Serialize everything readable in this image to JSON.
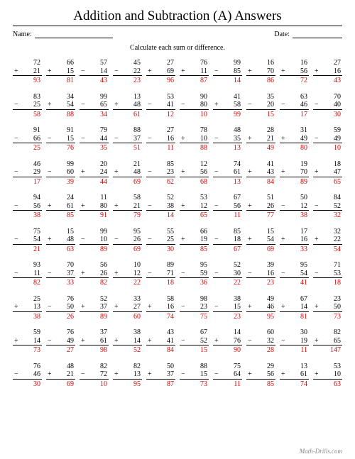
{
  "title": "Addition and Subtraction (A) Answers",
  "meta": {
    "name_label": "Name:",
    "date_label": "Date:",
    "name_line_width": 110,
    "date_line_width": 70
  },
  "instruction": "Calculate each sum or difference.",
  "footer": "Math-Drills.com",
  "colors": {
    "answer": "#d40000",
    "text": "#000000",
    "background": "#ffffff",
    "footer": "#888888"
  },
  "problems": [
    [
      {
        "t": 72,
        "o": "+",
        "b": 21,
        "a": 93
      },
      {
        "t": 66,
        "o": "+",
        "b": 15,
        "a": 81
      },
      {
        "t": 57,
        "o": "−",
        "b": 14,
        "a": 43
      },
      {
        "t": 45,
        "o": "−",
        "b": 22,
        "a": 23
      },
      {
        "t": 27,
        "o": "+",
        "b": 69,
        "a": 96
      },
      {
        "t": 76,
        "o": "+",
        "b": 11,
        "a": 87
      },
      {
        "t": 99,
        "o": "−",
        "b": 85,
        "a": 14
      },
      {
        "t": 16,
        "o": "+",
        "b": 70,
        "a": 86
      },
      {
        "t": 16,
        "o": "+",
        "b": 56,
        "a": 72
      },
      {
        "t": 27,
        "o": "+",
        "b": 16,
        "a": 43
      }
    ],
    [
      {
        "t": 83,
        "o": "−",
        "b": 25,
        "a": 58
      },
      {
        "t": 34,
        "o": "+",
        "b": 54,
        "a": 88
      },
      {
        "t": 99,
        "o": "−",
        "b": 65,
        "a": 34
      },
      {
        "t": 13,
        "o": "+",
        "b": 48,
        "a": 61
      },
      {
        "t": 53,
        "o": "−",
        "b": 41,
        "a": 12
      },
      {
        "t": 90,
        "o": "−",
        "b": 80,
        "a": 10
      },
      {
        "t": 41,
        "o": "+",
        "b": 58,
        "a": 99
      },
      {
        "t": 35,
        "o": "−",
        "b": 20,
        "a": 15
      },
      {
        "t": 63,
        "o": "−",
        "b": 46,
        "a": 17
      },
      {
        "t": 70,
        "o": "−",
        "b": 40,
        "a": 30
      }
    ],
    [
      {
        "t": 91,
        "o": "−",
        "b": 66,
        "a": 25
      },
      {
        "t": 91,
        "o": "−",
        "b": 15,
        "a": 76
      },
      {
        "t": 79,
        "o": "−",
        "b": 44,
        "a": 35
      },
      {
        "t": 88,
        "o": "−",
        "b": 37,
        "a": 51
      },
      {
        "t": 27,
        "o": "−",
        "b": 16,
        "a": 11
      },
      {
        "t": 78,
        "o": "+",
        "b": 10,
        "a": 88
      },
      {
        "t": 48,
        "o": "−",
        "b": 35,
        "a": 13
      },
      {
        "t": 28,
        "o": "+",
        "b": 21,
        "a": 49
      },
      {
        "t": 31,
        "o": "+",
        "b": 49,
        "a": 80
      },
      {
        "t": 59,
        "o": "−",
        "b": 49,
        "a": 10
      }
    ],
    [
      {
        "t": 46,
        "o": "−",
        "b": 29,
        "a": 17
      },
      {
        "t": 99,
        "o": "−",
        "b": 60,
        "a": 39
      },
      {
        "t": 20,
        "o": "+",
        "b": 24,
        "a": 44
      },
      {
        "t": 21,
        "o": "+",
        "b": 48,
        "a": 69
      },
      {
        "t": 85,
        "o": "−",
        "b": 23,
        "a": 62
      },
      {
        "t": 12,
        "o": "+",
        "b": 56,
        "a": 68
      },
      {
        "t": 74,
        "o": "−",
        "b": 61,
        "a": 13
      },
      {
        "t": 41,
        "o": "+",
        "b": 43,
        "a": 84
      },
      {
        "t": 19,
        "o": "+",
        "b": 70,
        "a": 89
      },
      {
        "t": 18,
        "o": "+",
        "b": 47,
        "a": 65
      }
    ],
    [
      {
        "t": 94,
        "o": "−",
        "b": 56,
        "a": 38
      },
      {
        "t": 24,
        "o": "+",
        "b": 61,
        "a": 85
      },
      {
        "t": 11,
        "o": "+",
        "b": 80,
        "a": 91
      },
      {
        "t": 58,
        "o": "+",
        "b": 21,
        "a": 79
      },
      {
        "t": 52,
        "o": "−",
        "b": 38,
        "a": 14
      },
      {
        "t": 53,
        "o": "+",
        "b": 12,
        "a": 65
      },
      {
        "t": 67,
        "o": "−",
        "b": 56,
        "a": 11
      },
      {
        "t": 51,
        "o": "+",
        "b": 26,
        "a": 77
      },
      {
        "t": 50,
        "o": "−",
        "b": 12,
        "a": 38
      },
      {
        "t": 84,
        "o": "−",
        "b": 52,
        "a": 32
      }
    ],
    [
      {
        "t": 75,
        "o": "−",
        "b": 54,
        "a": 21
      },
      {
        "t": 15,
        "o": "+",
        "b": 48,
        "a": 63
      },
      {
        "t": 99,
        "o": "−",
        "b": 10,
        "a": 89
      },
      {
        "t": 95,
        "o": "−",
        "b": 26,
        "a": 69
      },
      {
        "t": 55,
        "o": "−",
        "b": 25,
        "a": 30
      },
      {
        "t": 66,
        "o": "+",
        "b": 19,
        "a": 85
      },
      {
        "t": 85,
        "o": "−",
        "b": 18,
        "a": 67
      },
      {
        "t": 15,
        "o": "+",
        "b": 54,
        "a": 69
      },
      {
        "t": 17,
        "o": "+",
        "b": 16,
        "a": 33
      },
      {
        "t": 32,
        "o": "+",
        "b": 22,
        "a": 54
      }
    ],
    [
      {
        "t": 93,
        "o": "−",
        "b": 11,
        "a": 82
      },
      {
        "t": 70,
        "o": "−",
        "b": 37,
        "a": 33
      },
      {
        "t": 56,
        "o": "+",
        "b": 26,
        "a": 82
      },
      {
        "t": 10,
        "o": "+",
        "b": 12,
        "a": 22
      },
      {
        "t": 89,
        "o": "−",
        "b": 71,
        "a": 18
      },
      {
        "t": 95,
        "o": "−",
        "b": 59,
        "a": 36
      },
      {
        "t": 52,
        "o": "−",
        "b": 30,
        "a": 22
      },
      {
        "t": 39,
        "o": "−",
        "b": 16,
        "a": 23
      },
      {
        "t": 95,
        "o": "−",
        "b": 54,
        "a": 41
      },
      {
        "t": 71,
        "o": "−",
        "b": 53,
        "a": 18
      }
    ],
    [
      {
        "t": 25,
        "o": "+",
        "b": 13,
        "a": 38
      },
      {
        "t": 76,
        "o": "−",
        "b": 50,
        "a": 26
      },
      {
        "t": 52,
        "o": "+",
        "b": 37,
        "a": 89
      },
      {
        "t": 33,
        "o": "+",
        "b": 27,
        "a": 60
      },
      {
        "t": 58,
        "o": "+",
        "b": 16,
        "a": 74
      },
      {
        "t": 98,
        "o": "−",
        "b": 23,
        "a": 75
      },
      {
        "t": 38,
        "o": "−",
        "b": 15,
        "a": 23
      },
      {
        "t": 49,
        "o": "+",
        "b": 46,
        "a": 95
      },
      {
        "t": 67,
        "o": "+",
        "b": 14,
        "a": 81
      },
      {
        "t": 23,
        "o": "+",
        "b": 50,
        "a": 73
      }
    ],
    [
      {
        "t": 59,
        "o": "+",
        "b": 14,
        "a": 73
      },
      {
        "t": 76,
        "o": "−",
        "b": 49,
        "a": 27
      },
      {
        "t": 37,
        "o": "+",
        "b": 61,
        "a": 98
      },
      {
        "t": 38,
        "o": "+",
        "b": 14,
        "a": 52
      },
      {
        "t": 43,
        "o": "+",
        "b": 41,
        "a": 84
      },
      {
        "t": 67,
        "o": "−",
        "b": 52,
        "a": 15
      },
      {
        "t": 14,
        "o": "+",
        "b": 76,
        "a": 90
      },
      {
        "t": 60,
        "o": "−",
        "b": 32,
        "a": 28
      },
      {
        "t": 30,
        "o": "−",
        "b": 19,
        "a": 11
      },
      {
        "t": 82,
        "o": "+",
        "b": 65,
        "a": 147
      }
    ],
    [
      {
        "t": 76,
        "o": "−",
        "b": 46,
        "a": 30
      },
      {
        "t": 48,
        "o": "+",
        "b": 21,
        "a": 69
      },
      {
        "t": 82,
        "o": "−",
        "b": 72,
        "a": 10
      },
      {
        "t": 82,
        "o": "+",
        "b": 13,
        "a": 95
      },
      {
        "t": 50,
        "o": "+",
        "b": 37,
        "a": 87
      },
      {
        "t": 88,
        "o": "−",
        "b": 15,
        "a": 73
      },
      {
        "t": 75,
        "o": "−",
        "b": 64,
        "a": 11
      },
      {
        "t": 29,
        "o": "+",
        "b": 56,
        "a": 85
      },
      {
        "t": 13,
        "o": "+",
        "b": 61,
        "a": 74
      },
      {
        "t": 53,
        "o": "+",
        "b": 10,
        "a": 63
      }
    ]
  ]
}
